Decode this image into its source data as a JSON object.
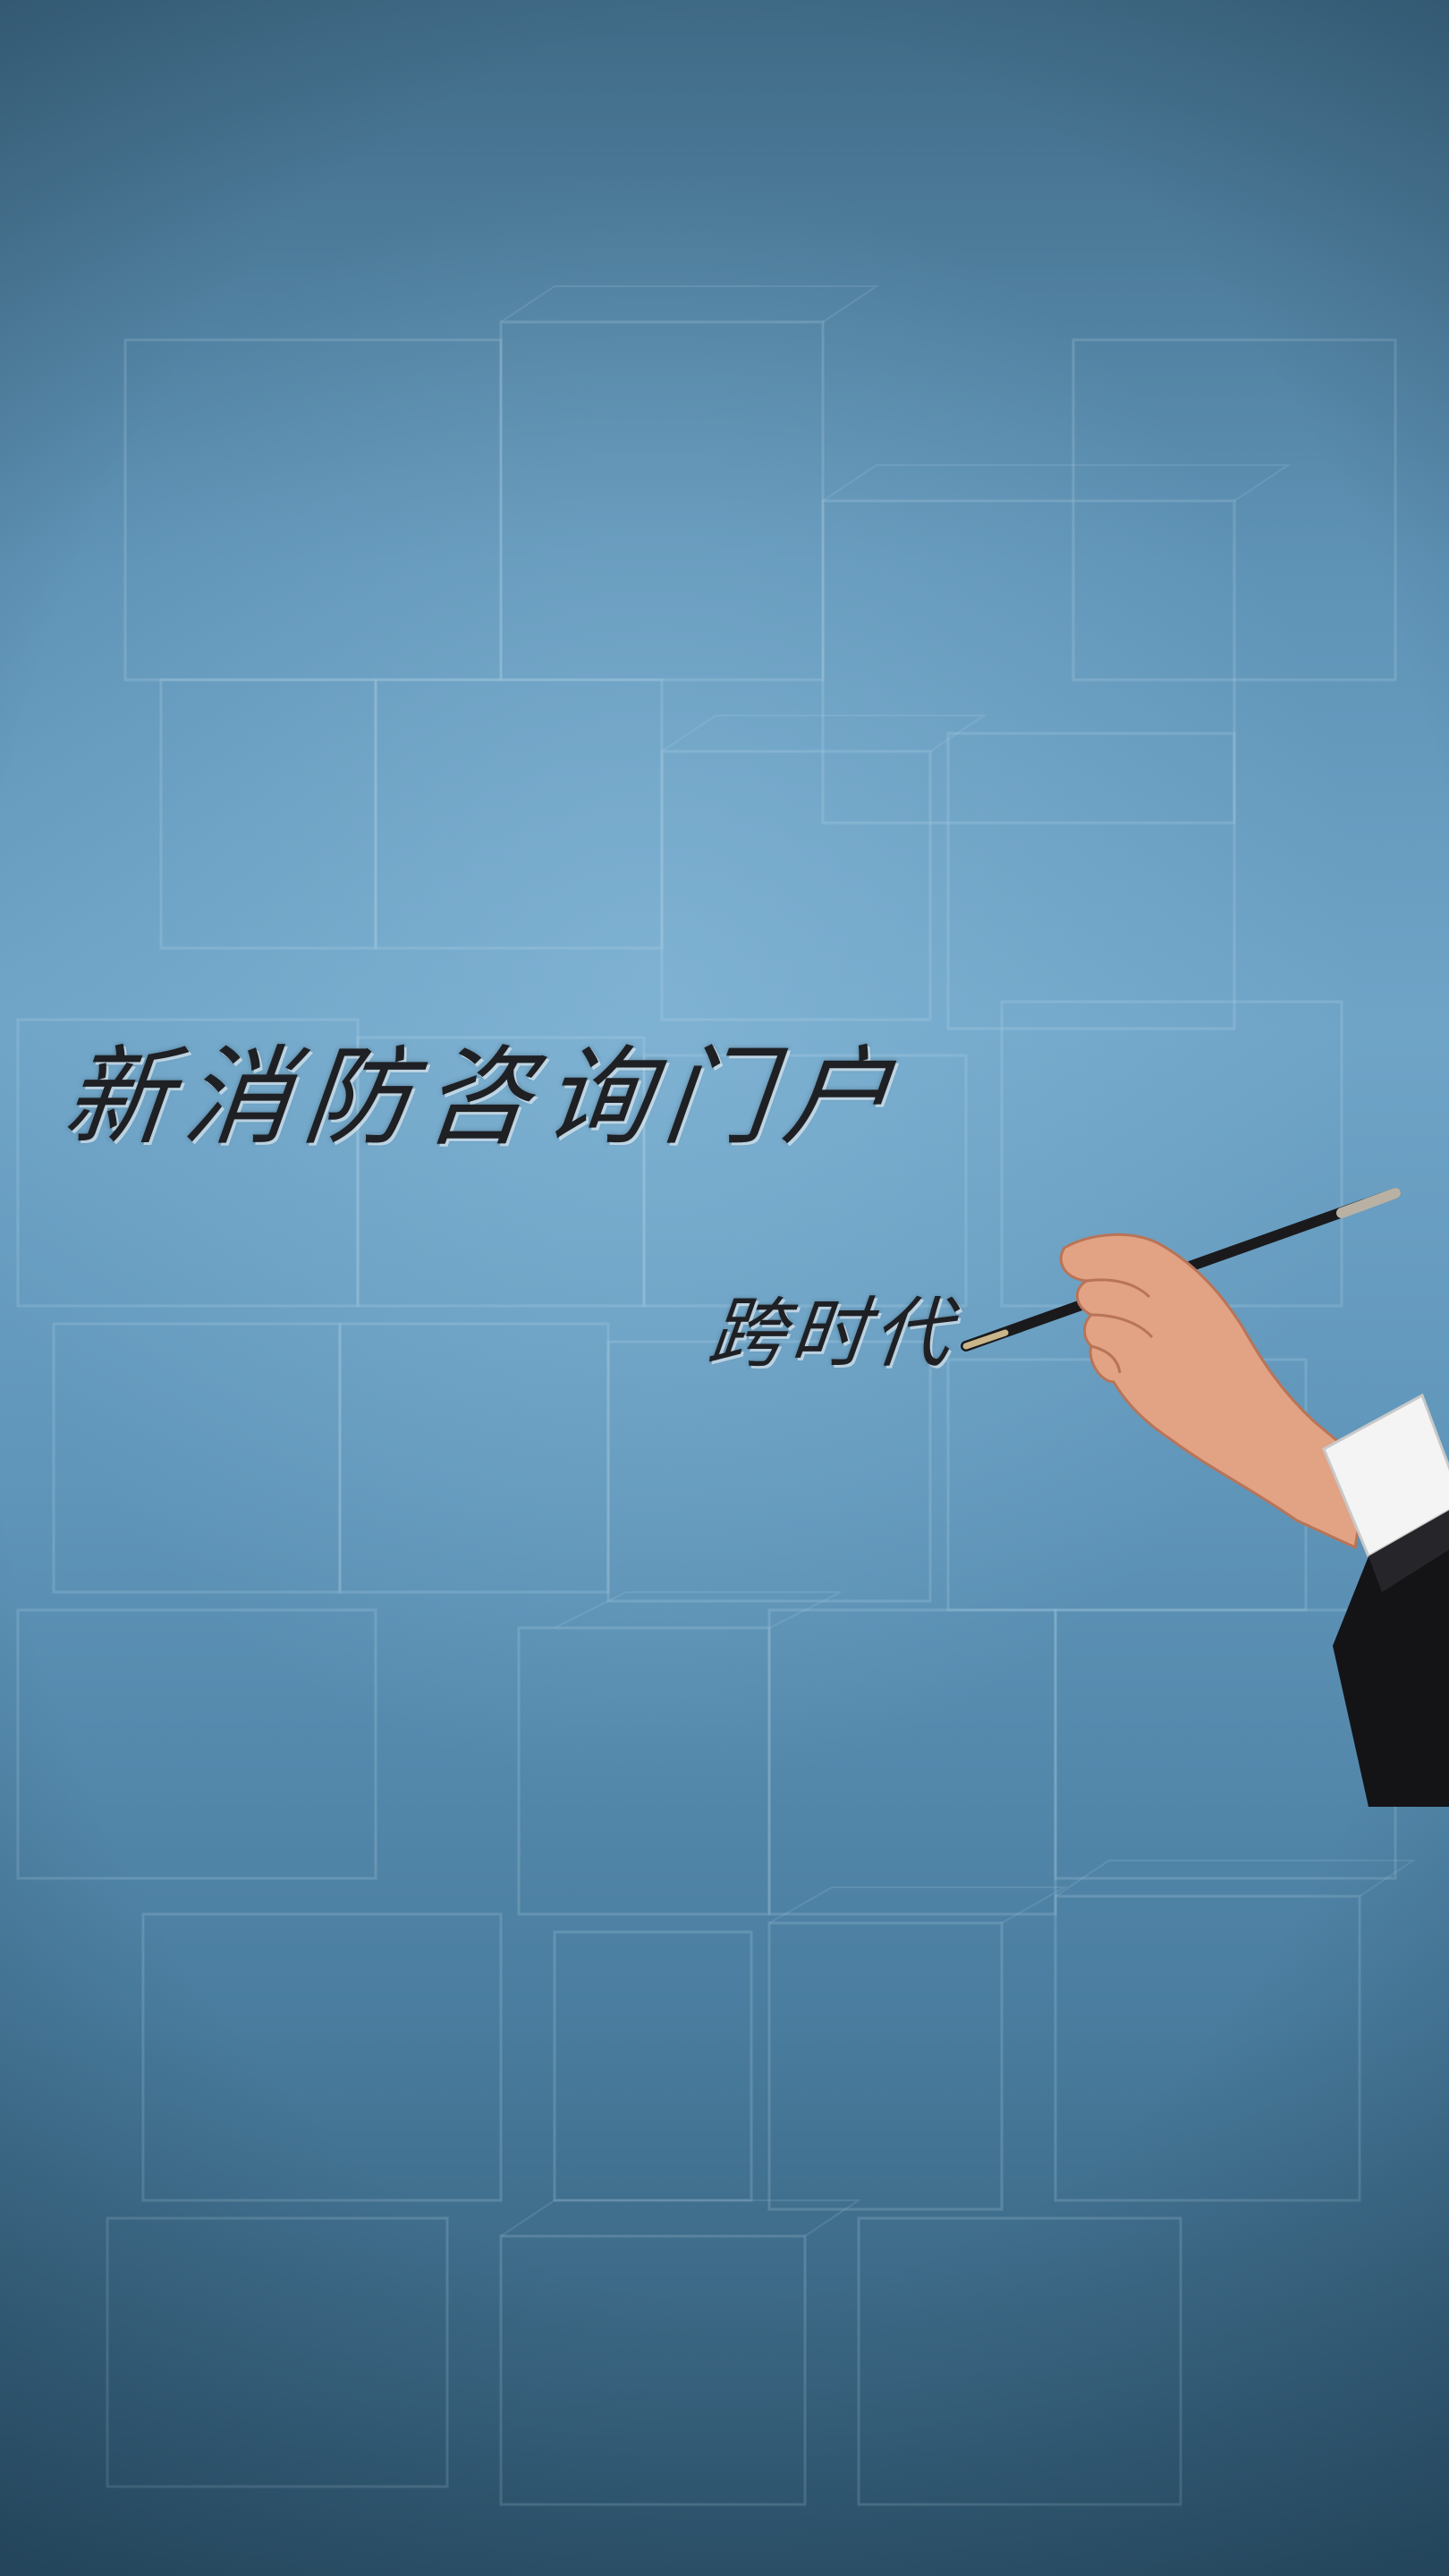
{
  "splash": {
    "title": "新消防咨询门户",
    "subtitle": "跨时代"
  },
  "colors": {
    "background_top": "#3f6a86",
    "background_mid": "#6fa4c7",
    "background_bottom": "#2f566f",
    "text": "#1e2024"
  },
  "illustration": {
    "icon": "hand-writing-with-pen-icon"
  }
}
